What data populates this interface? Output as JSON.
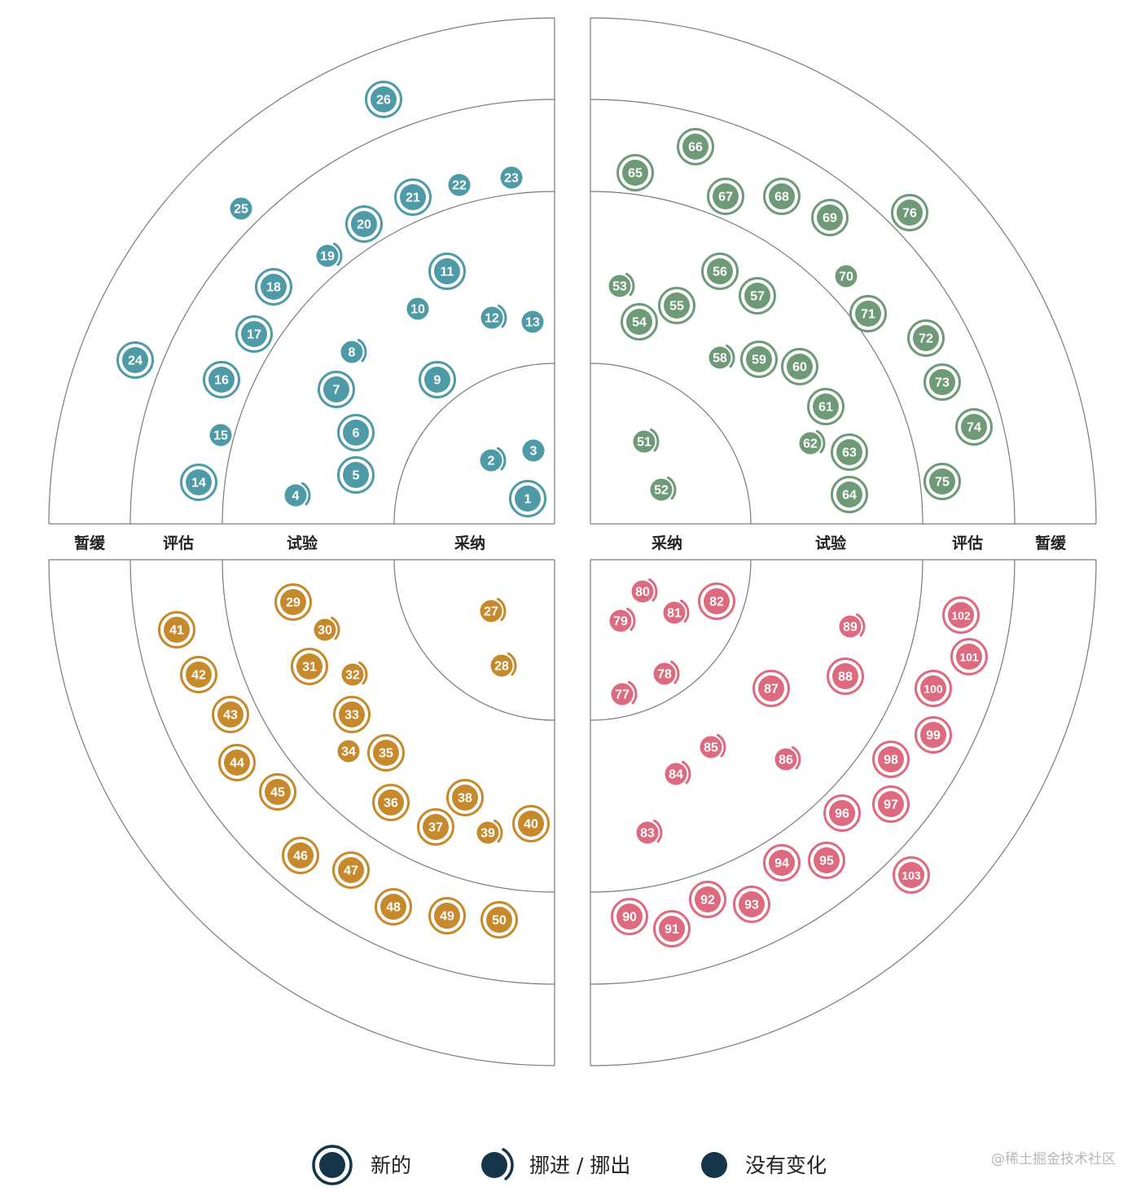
{
  "colors": {
    "techniques": "#4e9aa6",
    "tools": "#6f9a78",
    "platforms": "#c68a2c",
    "languages": "#de6a80",
    "legend": "#15364a",
    "line": "#7a7a7a"
  },
  "ring_labels": {
    "left": [
      "暂缓",
      "评估",
      "试验",
      "采纳"
    ],
    "right": [
      "采纳",
      "试验",
      "评估",
      "暂缓"
    ]
  },
  "legend": {
    "new": "新的",
    "moved": "挪进 / 挪出",
    "nochange": "没有变化"
  },
  "watermark": "@稀土掘金技术社区",
  "quadrants": [
    {
      "name": "techniques",
      "blips": [
        {
          "n": "1",
          "s": "new"
        },
        {
          "n": "2",
          "s": "moved"
        },
        {
          "n": "3",
          "s": "none"
        },
        {
          "n": "4",
          "s": "moved"
        },
        {
          "n": "5",
          "s": "new"
        },
        {
          "n": "6",
          "s": "new"
        },
        {
          "n": "7",
          "s": "new"
        },
        {
          "n": "8",
          "s": "moved"
        },
        {
          "n": "9",
          "s": "new"
        },
        {
          "n": "10",
          "s": "none"
        },
        {
          "n": "11",
          "s": "new"
        },
        {
          "n": "12",
          "s": "moved"
        },
        {
          "n": "13",
          "s": "none"
        },
        {
          "n": "14",
          "s": "new"
        },
        {
          "n": "15",
          "s": "none"
        },
        {
          "n": "16",
          "s": "new"
        },
        {
          "n": "17",
          "s": "new"
        },
        {
          "n": "18",
          "s": "new"
        },
        {
          "n": "19",
          "s": "moved"
        },
        {
          "n": "20",
          "s": "new"
        },
        {
          "n": "21",
          "s": "new"
        },
        {
          "n": "22",
          "s": "none"
        },
        {
          "n": "23",
          "s": "none"
        },
        {
          "n": "24",
          "s": "new"
        },
        {
          "n": "25",
          "s": "none"
        },
        {
          "n": "26",
          "s": "new"
        }
      ]
    },
    {
      "name": "tools",
      "blips": [
        {
          "n": "51",
          "s": "moved"
        },
        {
          "n": "52",
          "s": "moved"
        },
        {
          "n": "53",
          "s": "moved"
        },
        {
          "n": "54",
          "s": "new"
        },
        {
          "n": "55",
          "s": "new"
        },
        {
          "n": "56",
          "s": "new"
        },
        {
          "n": "57",
          "s": "new"
        },
        {
          "n": "58",
          "s": "moved"
        },
        {
          "n": "59",
          "s": "new"
        },
        {
          "n": "60",
          "s": "new"
        },
        {
          "n": "61",
          "s": "new"
        },
        {
          "n": "62",
          "s": "moved"
        },
        {
          "n": "63",
          "s": "new"
        },
        {
          "n": "64",
          "s": "new"
        },
        {
          "n": "65",
          "s": "new"
        },
        {
          "n": "66",
          "s": "new"
        },
        {
          "n": "67",
          "s": "new"
        },
        {
          "n": "68",
          "s": "new"
        },
        {
          "n": "69",
          "s": "new"
        },
        {
          "n": "70",
          "s": "none"
        },
        {
          "n": "71",
          "s": "new"
        },
        {
          "n": "72",
          "s": "new"
        },
        {
          "n": "73",
          "s": "new"
        },
        {
          "n": "74",
          "s": "new"
        },
        {
          "n": "75",
          "s": "new"
        },
        {
          "n": "76",
          "s": "new"
        }
      ]
    },
    {
      "name": "platforms",
      "blips": [
        {
          "n": "27",
          "s": "moved"
        },
        {
          "n": "28",
          "s": "moved"
        },
        {
          "n": "29",
          "s": "new"
        },
        {
          "n": "30",
          "s": "moved"
        },
        {
          "n": "31",
          "s": "new"
        },
        {
          "n": "32",
          "s": "moved"
        },
        {
          "n": "33",
          "s": "new"
        },
        {
          "n": "34",
          "s": "none"
        },
        {
          "n": "35",
          "s": "new"
        },
        {
          "n": "36",
          "s": "new"
        },
        {
          "n": "37",
          "s": "new"
        },
        {
          "n": "38",
          "s": "new"
        },
        {
          "n": "39",
          "s": "moved"
        },
        {
          "n": "40",
          "s": "new"
        },
        {
          "n": "41",
          "s": "new"
        },
        {
          "n": "42",
          "s": "new"
        },
        {
          "n": "43",
          "s": "new"
        },
        {
          "n": "44",
          "s": "new"
        },
        {
          "n": "45",
          "s": "new"
        },
        {
          "n": "46",
          "s": "new"
        },
        {
          "n": "47",
          "s": "new"
        },
        {
          "n": "48",
          "s": "new"
        },
        {
          "n": "49",
          "s": "new"
        },
        {
          "n": "50",
          "s": "new"
        }
      ]
    },
    {
      "name": "languages",
      "blips": [
        {
          "n": "77",
          "s": "moved"
        },
        {
          "n": "78",
          "s": "moved"
        },
        {
          "n": "79",
          "s": "moved"
        },
        {
          "n": "80",
          "s": "moved"
        },
        {
          "n": "81",
          "s": "moved"
        },
        {
          "n": "82",
          "s": "new"
        },
        {
          "n": "83",
          "s": "moved"
        },
        {
          "n": "84",
          "s": "moved"
        },
        {
          "n": "85",
          "s": "moved"
        },
        {
          "n": "86",
          "s": "moved"
        },
        {
          "n": "87",
          "s": "new"
        },
        {
          "n": "88",
          "s": "new"
        },
        {
          "n": "89",
          "s": "moved"
        },
        {
          "n": "90",
          "s": "new"
        },
        {
          "n": "91",
          "s": "new"
        },
        {
          "n": "92",
          "s": "new"
        },
        {
          "n": "93",
          "s": "new"
        },
        {
          "n": "94",
          "s": "new"
        },
        {
          "n": "95",
          "s": "new"
        },
        {
          "n": "96",
          "s": "new"
        },
        {
          "n": "97",
          "s": "new"
        },
        {
          "n": "98",
          "s": "new"
        },
        {
          "n": "99",
          "s": "new"
        },
        {
          "n": "100",
          "s": "new"
        },
        {
          "n": "101",
          "s": "new"
        },
        {
          "n": "102",
          "s": "new"
        },
        {
          "n": "103",
          "s": "new"
        }
      ]
    }
  ]
}
